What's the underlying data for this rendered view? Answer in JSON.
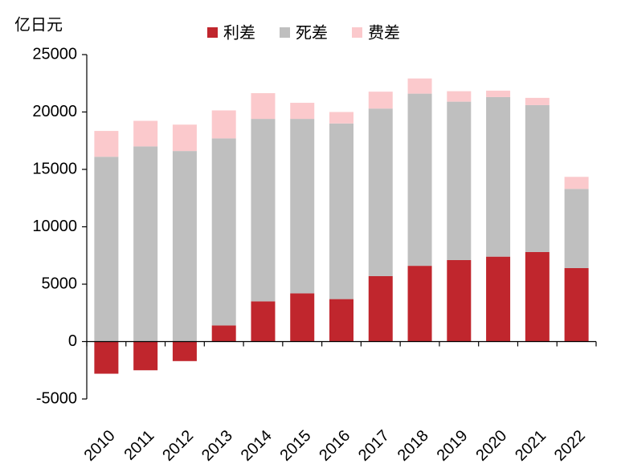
{
  "chart_data": {
    "type": "stacked_bar",
    "y_label": "亿日元",
    "categories": [
      "2010",
      "2011",
      "2012",
      "2013",
      "2014",
      "2015",
      "2016",
      "2017",
      "2018",
      "2019",
      "2020",
      "2021",
      "2022"
    ],
    "series": [
      {
        "name": "利差",
        "color": "#c0262d",
        "values": [
          -2800,
          -2500,
          -1700,
          1400,
          3500,
          4200,
          3700,
          5700,
          6600,
          7100,
          7400,
          7800,
          6400
        ]
      },
      {
        "name": "死差",
        "color": "#bfbfbf",
        "values": [
          16100,
          17000,
          16600,
          16300,
          15900,
          15200,
          15300,
          14600,
          15000,
          13800,
          13900,
          12800,
          6900
        ]
      },
      {
        "name": "费差",
        "color": "#fbc9cc",
        "values": [
          2250,
          2230,
          2300,
          2440,
          2240,
          1400,
          1000,
          1470,
          1320,
          910,
          560,
          630,
          1050
        ]
      }
    ],
    "ylim": [
      -5000,
      25000
    ],
    "yticks": [
      -5000,
      0,
      5000,
      10000,
      15000,
      20000,
      25000
    ],
    "legend": "top"
  }
}
